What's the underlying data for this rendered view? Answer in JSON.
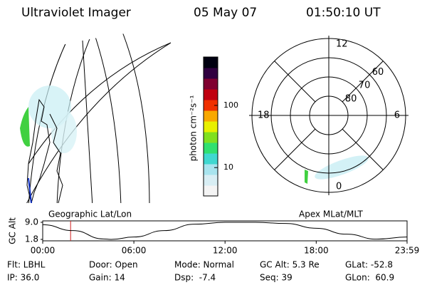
{
  "header": {
    "title": "Ultraviolet Imager",
    "date": "05 May 07",
    "time": "01:50:10 UT"
  },
  "chart_data": [
    {
      "type": "colorbar",
      "title": "photon cm⁻²s⁻¹",
      "log_scale": true,
      "ylim": [
        3.5,
        600
      ],
      "yticks": [
        10,
        100
      ],
      "colors": [
        "#f4f4f4",
        "#d8eef4",
        "#a8e4ee",
        "#40d8d0",
        "#30e070",
        "#80e020",
        "#e8f000",
        "#f8a800",
        "#f03000",
        "#c00010",
        "#800030",
        "#300040",
        "#000010"
      ]
    },
    {
      "type": "polar",
      "title": "Apex MLat/MLT",
      "rlim": [
        90,
        50
      ],
      "rticks": [
        80,
        70,
        60
      ],
      "thetaticks": [
        0,
        6,
        12,
        18
      ]
    },
    {
      "type": "line",
      "title": "Geographic Lat/Lon",
      "ylabel": "GC Alt",
      "x": [
        0,
        2,
        4,
        4.5,
        6,
        8,
        10,
        12,
        14,
        16,
        18,
        20,
        22,
        23.98
      ],
      "values": [
        8.0,
        5.5,
        2.0,
        1.8,
        2.8,
        5.5,
        8.2,
        9.0,
        9.0,
        8.5,
        6.5,
        4.0,
        1.9,
        2.8
      ],
      "color": "#000",
      "marker_x": 1.836,
      "marker_color": "#d02020",
      "xlim": [
        0,
        23.98
      ],
      "ylim": [
        1.8,
        9.0
      ],
      "xticks": [
        {
          "value": 0,
          "label": "00:00"
        },
        {
          "value": 6,
          "label": "06:00"
        },
        {
          "value": 12,
          "label": "12:00"
        },
        {
          "value": 18,
          "label": "18:00"
        },
        {
          "value": 23.98,
          "label": "23:59"
        }
      ],
      "yticks": [
        {
          "value": 9.0,
          "label": "9.0"
        },
        1.8
      ]
    }
  ],
  "footer": {
    "rows": [
      [
        "Flt: LBHL",
        "Door: Open",
        "Mode: Normal",
        "GC Alt: 5.3 Re",
        "GLat: -52.8"
      ],
      [
        "IP: 36.0",
        "Gain: 14",
        "Dsp:  -7.4",
        "Seq: 39",
        "GLon:  60.9"
      ]
    ]
  }
}
